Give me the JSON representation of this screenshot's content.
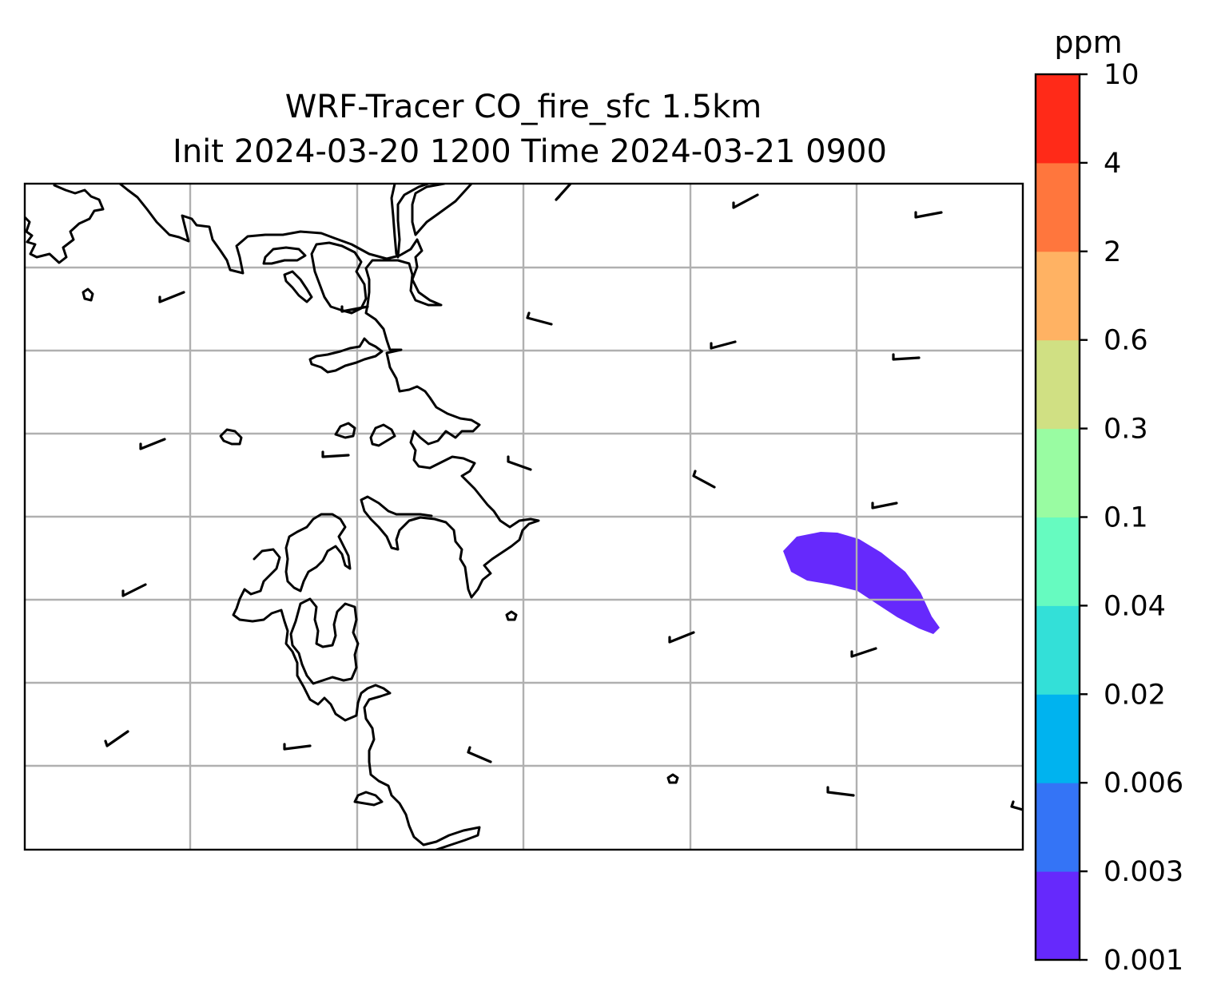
{
  "chart_data": {
    "type": "map",
    "title_line1": "WRF-Tracer CO_fire_sfc 1.5km",
    "title_line2": "Init 2024-03-20 1200 Time 2024-03-21 0900",
    "colorbar": {
      "unit": "ppm",
      "levels": [
        "0.001",
        "0.003",
        "0.006",
        "0.02",
        "0.04",
        "0.1",
        "0.3",
        "0.6",
        "2",
        "4",
        "10"
      ],
      "colors": [
        "#6629fc",
        "#3474f6",
        "#00b3ef",
        "#33e0d8",
        "#66fbc0",
        "#99fca2",
        "#d0e083",
        "#ffb263",
        "#ff763d",
        "#ff2a18"
      ]
    },
    "grid": true,
    "plume": {
      "range": [
        "0.001",
        "0.003"
      ],
      "color": "#6629fc"
    },
    "wind_barbs": "short calm barbs on a regular grid"
  }
}
